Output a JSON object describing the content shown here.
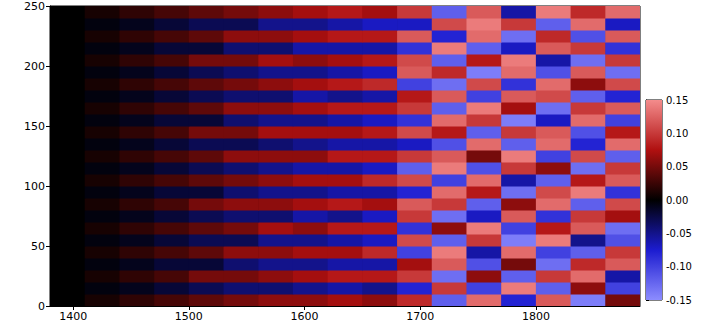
{
  "chart_data": {
    "type": "heatmap",
    "x": [
      1395,
      1425,
      1455,
      1485,
      1515,
      1545,
      1575,
      1605,
      1635,
      1665,
      1695,
      1725,
      1755,
      1785,
      1815,
      1845,
      1875
    ],
    "y": [
      5,
      15,
      25,
      35,
      45,
      55,
      65,
      75,
      85,
      95,
      105,
      115,
      125,
      135,
      145,
      155,
      165,
      175,
      185,
      195,
      205,
      215,
      225,
      235,
      245
    ],
    "values": [
      [
        0,
        0.01,
        0.02,
        0.03,
        0.04,
        0.05,
        0.06,
        0.06,
        0.07,
        0.06,
        0.09,
        -0.12,
        0.13,
        -0.08,
        0.12,
        -0.14,
        0.05
      ],
      [
        0,
        -0.005,
        -0.01,
        -0.02,
        -0.03,
        -0.04,
        -0.04,
        -0.05,
        -0.06,
        -0.05,
        -0.08,
        0.1,
        -0.1,
        0.14,
        -0.12,
        0.06,
        -0.1
      ],
      [
        0,
        0.01,
        0.02,
        0.03,
        0.05,
        0.05,
        0.06,
        0.07,
        0.08,
        0.08,
        0.1,
        -0.13,
        0.06,
        -0.12,
        0.1,
        0.13,
        -0.06
      ],
      [
        0,
        -0.005,
        -0.01,
        -0.02,
        -0.02,
        -0.04,
        -0.05,
        -0.05,
        -0.06,
        -0.06,
        0.07,
        0.12,
        -0.11,
        0.05,
        -0.13,
        0.09,
        0.12
      ],
      [
        0,
        0.01,
        0.02,
        0.03,
        0.04,
        0.06,
        0.06,
        0.07,
        0.07,
        0.09,
        -0.1,
        0.14,
        -0.06,
        0.13,
        -0.1,
        -0.12,
        0.1
      ],
      [
        0,
        -0.005,
        -0.01,
        -0.02,
        -0.03,
        -0.03,
        -0.05,
        -0.05,
        -0.06,
        -0.07,
        0.11,
        -0.12,
        0.1,
        -0.14,
        0.14,
        -0.05,
        -0.11
      ],
      [
        0,
        0.01,
        0.02,
        0.03,
        0.04,
        0.05,
        0.07,
        0.06,
        0.08,
        0.08,
        -0.09,
        0.06,
        0.14,
        -0.1,
        0.08,
        0.12,
        -0.13
      ],
      [
        0,
        -0.005,
        -0.01,
        -0.02,
        -0.03,
        -0.04,
        -0.04,
        -0.06,
        -0.05,
        -0.07,
        0.1,
        -0.13,
        -0.07,
        0.12,
        -0.09,
        0.1,
        0.07
      ],
      [
        0,
        0.01,
        0.02,
        0.03,
        0.05,
        0.06,
        0.06,
        0.07,
        0.08,
        0.07,
        0.12,
        0.1,
        -0.12,
        0.06,
        0.13,
        -0.12,
        0.11
      ],
      [
        0,
        -0.005,
        -0.01,
        -0.02,
        -0.02,
        -0.04,
        -0.05,
        -0.05,
        -0.06,
        -0.06,
        -0.08,
        0.13,
        0.08,
        -0.13,
        0.11,
        0.14,
        -0.09
      ],
      [
        0,
        0.01,
        0.02,
        0.03,
        0.04,
        0.05,
        0.06,
        0.07,
        0.07,
        0.09,
        0.11,
        -0.1,
        0.13,
        -0.06,
        -0.12,
        0.08,
        0.12
      ],
      [
        0,
        -0.005,
        -0.01,
        -0.02,
        -0.03,
        -0.04,
        -0.05,
        -0.06,
        -0.06,
        -0.07,
        -0.12,
        0.14,
        -0.11,
        0.1,
        0.06,
        -0.13,
        0.1
      ],
      [
        0,
        0.01,
        0.02,
        0.03,
        0.04,
        0.06,
        0.06,
        0.06,
        0.08,
        0.08,
        0.1,
        0.12,
        0.05,
        0.14,
        -0.1,
        0.11,
        -0.12
      ],
      [
        0,
        -0.005,
        -0.01,
        -0.02,
        -0.03,
        -0.03,
        -0.04,
        -0.05,
        -0.06,
        -0.06,
        -0.07,
        -0.11,
        0.13,
        -0.12,
        0.13,
        -0.08,
        0.13
      ],
      [
        0,
        0.01,
        0.02,
        0.03,
        0.05,
        0.05,
        0.07,
        0.07,
        0.07,
        0.08,
        0.11,
        0.08,
        -0.12,
        0.1,
        0.12,
        -0.11,
        0.08
      ],
      [
        0,
        -0.005,
        -0.01,
        -0.02,
        -0.02,
        -0.04,
        -0.05,
        -0.05,
        -0.06,
        -0.07,
        -0.09,
        0.13,
        0.1,
        -0.14,
        -0.07,
        0.13,
        -0.1
      ],
      [
        0,
        0.01,
        0.02,
        0.03,
        0.04,
        0.06,
        0.06,
        0.07,
        0.08,
        0.08,
        0.1,
        -0.12,
        0.14,
        0.07,
        -0.13,
        0.1,
        0.12
      ],
      [
        0,
        -0.005,
        -0.01,
        -0.02,
        -0.03,
        -0.04,
        -0.04,
        -0.06,
        -0.05,
        -0.06,
        0.08,
        0.12,
        -0.1,
        0.12,
        0.11,
        -0.12,
        -0.08
      ],
      [
        0,
        0.01,
        0.02,
        0.03,
        0.04,
        0.05,
        0.06,
        0.07,
        0.08,
        0.09,
        -0.1,
        -0.13,
        0.11,
        -0.09,
        0.13,
        0.06,
        0.11
      ],
      [
        0,
        -0.005,
        -0.01,
        -0.02,
        -0.03,
        -0.04,
        -0.05,
        -0.05,
        -0.06,
        -0.07,
        0.12,
        0.09,
        -0.14,
        0.13,
        -0.11,
        0.12,
        -0.13
      ],
      [
        0,
        0.01,
        0.02,
        0.03,
        0.05,
        0.05,
        0.07,
        0.06,
        0.07,
        0.08,
        0.11,
        -0.12,
        0.08,
        0.14,
        -0.06,
        -0.13,
        0.1
      ],
      [
        0,
        -0.005,
        -0.01,
        -0.02,
        -0.02,
        -0.04,
        -0.04,
        -0.06,
        -0.06,
        -0.06,
        -0.09,
        0.14,
        -0.12,
        -0.07,
        0.12,
        0.1,
        -0.09
      ],
      [
        0,
        0.01,
        0.02,
        0.03,
        0.04,
        0.06,
        0.06,
        0.07,
        0.08,
        0.08,
        0.12,
        -0.08,
        0.13,
        -0.13,
        0.09,
        -0.11,
        0.12
      ],
      [
        0,
        -0.005,
        -0.01,
        -0.02,
        -0.03,
        -0.03,
        -0.05,
        -0.05,
        -0.06,
        -0.07,
        -0.07,
        0.11,
        0.14,
        0.1,
        -0.12,
        0.13,
        -0.07
      ],
      [
        0,
        0.01,
        0.02,
        0.03,
        0.04,
        0.05,
        0.06,
        0.07,
        0.08,
        0.07,
        0.1,
        -0.12,
        0.12,
        -0.06,
        0.14,
        0.09,
        0.13
      ]
    ],
    "xlim": [
      1380,
      1890
    ],
    "xticks": [
      1400,
      1500,
      1600,
      1700,
      1800
    ],
    "ylim": [
      0,
      250
    ],
    "yticks": [
      0,
      50,
      100,
      150,
      200,
      250
    ],
    "colorbar": {
      "range": [
        -0.15,
        0.15
      ],
      "ticks": [
        0.15,
        {
          "value": 0.1,
          "label": "0.10"
        },
        0.05,
        {
          "value": 0,
          "label": "0.00"
        },
        -0.05,
        {
          "value": -0.1,
          "label": "-0.10"
        },
        -0.15
      ]
    }
  }
}
